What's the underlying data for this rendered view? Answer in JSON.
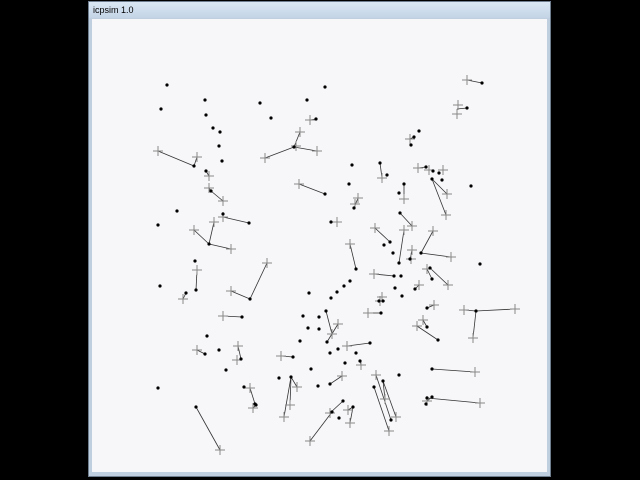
{
  "window": {
    "title": "icpsim 1.0"
  },
  "colors": {
    "background": "#000000",
    "client_bg": "#f7f7fa",
    "point_fill": "#000000",
    "marker": "#888888",
    "link": "#333333"
  },
  "icons": {
    "point": "filled-dot",
    "marker": "plus-cross"
  }
}
